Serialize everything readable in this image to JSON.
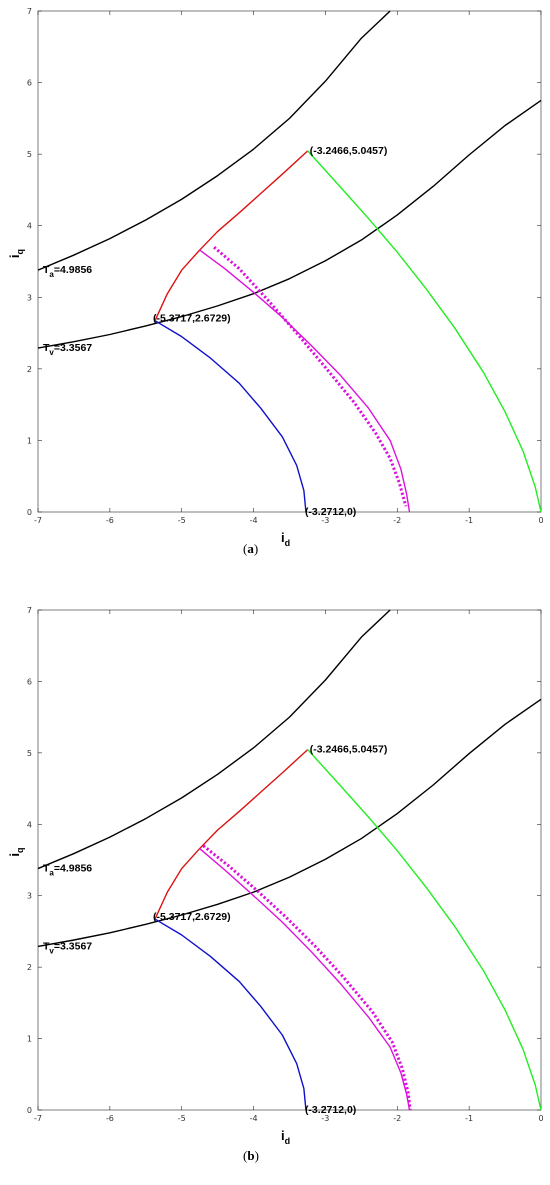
{
  "chart_data": [
    {
      "type": "line",
      "panel": "a",
      "caption": "(a)",
      "xlabel_main": "i",
      "xlabel_sub": "d",
      "ylabel_main": "i",
      "ylabel_sub": "q",
      "xlim": [
        -7,
        0
      ],
      "ylim": [
        0,
        7
      ],
      "xticks": [
        -7,
        -6,
        -5,
        -4,
        -3,
        -2,
        -1,
        0
      ],
      "yticks": [
        0,
        1,
        2,
        3,
        4,
        5,
        6,
        7
      ],
      "grid": false,
      "series": [
        {
          "color": "#000000",
          "style": "solid",
          "x": [
            -7,
            -6.5,
            -6,
            -5.5,
            -5,
            -4.5,
            -4,
            -3.5,
            -3,
            -2.5,
            -2.1
          ],
          "y": [
            3.38,
            3.59,
            3.82,
            4.08,
            4.37,
            4.7,
            5.07,
            5.5,
            6.02,
            6.62,
            7.0
          ]
        },
        {
          "color": "#000000",
          "style": "solid",
          "x": [
            -7,
            -6.5,
            -6,
            -5.5,
            -5,
            -4.5,
            -4,
            -3.5,
            -3,
            -2.5,
            -2,
            -1.5,
            -1,
            -0.5,
            0
          ],
          "y": [
            2.29,
            2.38,
            2.48,
            2.6,
            2.73,
            2.88,
            3.05,
            3.26,
            3.51,
            3.8,
            4.15,
            4.55,
            4.99,
            5.4,
            5.75
          ]
        },
        {
          "color": "#1010cc",
          "style": "solid",
          "x": [
            -5.3717,
            -5.0,
            -4.6,
            -4.2,
            -3.9,
            -3.6,
            -3.4,
            -3.3,
            -3.2712
          ],
          "y": [
            2.6729,
            2.45,
            2.15,
            1.8,
            1.45,
            1.05,
            0.65,
            0.3,
            0
          ]
        },
        {
          "color": "#dd1111",
          "style": "solid",
          "x": [
            -5.3717,
            -5.2,
            -5.0,
            -4.75,
            -4.5,
            -4.2,
            -3.9,
            -3.6,
            -3.2466
          ],
          "y": [
            2.6729,
            3.05,
            3.38,
            3.66,
            3.92,
            4.18,
            4.45,
            4.72,
            5.0457
          ]
        },
        {
          "color": "#dd11dd",
          "style": "solid",
          "x": [
            -4.75,
            -4.4,
            -4.0,
            -3.6,
            -3.2,
            -2.8,
            -2.4,
            -2.1,
            -1.95,
            -1.87,
            -1.83
          ],
          "y": [
            3.66,
            3.4,
            3.07,
            2.72,
            2.33,
            1.92,
            1.45,
            1.0,
            0.6,
            0.25,
            0
          ]
        },
        {
          "color": "#dd11dd",
          "style": "dotted",
          "x": [
            -4.55,
            -4.2,
            -3.8,
            -3.4,
            -3.0,
            -2.6,
            -2.3,
            -2.1,
            -1.97,
            -1.88
          ],
          "y": [
            3.7,
            3.4,
            2.96,
            2.5,
            2.02,
            1.53,
            1.1,
            0.75,
            0.4,
            0.08
          ]
        },
        {
          "color": "#22ee22",
          "style": "solid",
          "x": [
            -3.2466,
            -2.8,
            -2.4,
            -2.0,
            -1.6,
            -1.2,
            -0.8,
            -0.5,
            -0.25,
            -0.08,
            0
          ],
          "y": [
            5.0457,
            4.55,
            4.1,
            3.63,
            3.12,
            2.57,
            1.95,
            1.4,
            0.85,
            0.35,
            0
          ]
        }
      ],
      "annotations": [
        {
          "text": "(-3.2466,5.0457)",
          "x": -3.2466,
          "y": 5.0457
        },
        {
          "text": "(-5.3717,2.6729)",
          "x": -5.3717,
          "y": 2.6729
        },
        {
          "text": "(-3.2712,0)",
          "x": -3.2712,
          "y": 0
        }
      ],
      "torque_labels": [
        {
          "main": "T",
          "sub": "a",
          "value": "=4.9856"
        },
        {
          "main": "T",
          "sub": "v",
          "value": "=3.3567"
        }
      ]
    },
    {
      "type": "line",
      "panel": "b",
      "caption": "(b)",
      "xlabel_main": "i",
      "xlabel_sub": "d",
      "ylabel_main": "i",
      "ylabel_sub": "q",
      "xlim": [
        -7,
        0
      ],
      "ylim": [
        0,
        7
      ],
      "xticks": [
        -7,
        -6,
        -5,
        -4,
        -3,
        -2,
        -1,
        0
      ],
      "yticks": [
        0,
        1,
        2,
        3,
        4,
        5,
        6,
        7
      ],
      "grid": false,
      "series": [
        {
          "color": "#000000",
          "style": "solid",
          "x": [
            -7,
            -6.5,
            -6,
            -5.5,
            -5,
            -4.5,
            -4,
            -3.5,
            -3,
            -2.5,
            -2.1
          ],
          "y": [
            3.38,
            3.59,
            3.82,
            4.08,
            4.37,
            4.7,
            5.07,
            5.5,
            6.02,
            6.62,
            7.0
          ]
        },
        {
          "color": "#000000",
          "style": "solid",
          "x": [
            -7,
            -6.5,
            -6,
            -5.5,
            -5,
            -4.5,
            -4,
            -3.5,
            -3,
            -2.5,
            -2,
            -1.5,
            -1,
            -0.5,
            0
          ],
          "y": [
            2.29,
            2.38,
            2.48,
            2.6,
            2.73,
            2.88,
            3.05,
            3.26,
            3.51,
            3.8,
            4.15,
            4.55,
            4.99,
            5.4,
            5.75
          ]
        },
        {
          "color": "#1010cc",
          "style": "solid",
          "x": [
            -5.3717,
            -5.0,
            -4.6,
            -4.2,
            -3.9,
            -3.6,
            -3.4,
            -3.3,
            -3.2712
          ],
          "y": [
            2.6729,
            2.45,
            2.15,
            1.8,
            1.45,
            1.05,
            0.65,
            0.3,
            0
          ]
        },
        {
          "color": "#dd1111",
          "style": "solid",
          "x": [
            -5.3717,
            -5.2,
            -5.0,
            -4.75,
            -4.5,
            -4.2,
            -3.9,
            -3.6,
            -3.2466
          ],
          "y": [
            2.6729,
            3.05,
            3.38,
            3.66,
            3.92,
            4.18,
            4.45,
            4.72,
            5.0457
          ]
        },
        {
          "color": "#dd11dd",
          "style": "solid",
          "x": [
            -4.75,
            -4.4,
            -4.0,
            -3.6,
            -3.2,
            -2.8,
            -2.4,
            -2.1,
            -1.95,
            -1.87,
            -1.83
          ],
          "y": [
            3.66,
            3.36,
            3.0,
            2.63,
            2.22,
            1.78,
            1.3,
            0.88,
            0.52,
            0.22,
            0
          ]
        },
        {
          "color": "#dd11dd",
          "style": "dotted",
          "x": [
            -4.7,
            -4.35,
            -3.95,
            -3.55,
            -3.15,
            -2.75,
            -2.35,
            -2.07,
            -1.93,
            -1.85,
            -1.82
          ],
          "y": [
            3.7,
            3.42,
            3.07,
            2.7,
            2.3,
            1.86,
            1.38,
            0.95,
            0.58,
            0.25,
            0
          ]
        },
        {
          "color": "#22ee22",
          "style": "solid",
          "x": [
            -3.2466,
            -2.8,
            -2.4,
            -2.0,
            -1.6,
            -1.2,
            -0.8,
            -0.5,
            -0.25,
            -0.08,
            0
          ],
          "y": [
            5.0457,
            4.55,
            4.1,
            3.63,
            3.12,
            2.57,
            1.95,
            1.4,
            0.85,
            0.35,
            0
          ]
        }
      ],
      "annotations": [
        {
          "text": "(-3.2466,5.0457)",
          "x": -3.2466,
          "y": 5.0457
        },
        {
          "text": "(-5.3717,2.6729)",
          "x": -5.3717,
          "y": 2.6729
        },
        {
          "text": "(-3.2712,0)",
          "x": -3.2712,
          "y": 0
        }
      ],
      "torque_labels": [
        {
          "main": "T",
          "sub": "a",
          "value": "=4.9856"
        },
        {
          "main": "T",
          "sub": "v",
          "value": "=3.3567"
        }
      ]
    }
  ]
}
